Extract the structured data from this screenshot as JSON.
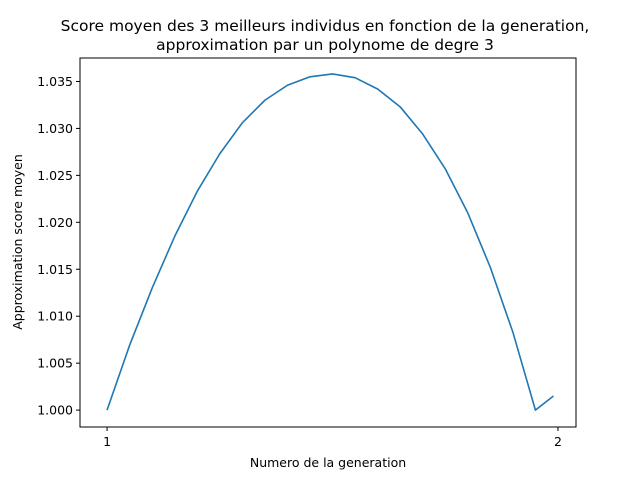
{
  "chart_data": {
    "type": "line",
    "title_lines": [
      "Score moyen des 3 meilleurs individus en fonction de la generation,",
      "approximation par un polynome de degre 3"
    ],
    "xlabel": "Numero de la generation",
    "ylabel": "Approximation score moyen",
    "xlim": [
      0.94,
      2.04
    ],
    "ylim": [
      0.9982,
      1.0375
    ],
    "x_ticks": [
      1,
      2
    ],
    "x_tick_labels": [
      "1",
      "2"
    ],
    "y_ticks": [
      1.0,
      1.005,
      1.01,
      1.015,
      1.02,
      1.025,
      1.03,
      1.035
    ],
    "y_tick_labels": [
      "1.000",
      "1.005",
      "1.010",
      "1.015",
      "1.020",
      "1.025",
      "1.030",
      "1.035"
    ],
    "grid": false,
    "series": [
      {
        "color": "#1f77b4",
        "x": [
          1.0,
          1.05,
          1.1,
          1.15,
          1.2,
          1.25,
          1.3,
          1.35,
          1.4,
          1.45,
          1.5,
          1.55,
          1.6,
          1.65,
          1.7,
          1.75,
          1.8,
          1.85,
          1.9,
          1.95,
          1.99
        ],
        "y": [
          1.0,
          1.0069,
          1.013,
          1.0185,
          1.0233,
          1.0273,
          1.0306,
          1.033,
          1.0346,
          1.0355,
          1.0358,
          1.0354,
          1.0342,
          1.0323,
          1.0294,
          1.0257,
          1.021,
          1.0152,
          1.0083,
          1.0,
          1.0015
        ]
      }
    ]
  }
}
